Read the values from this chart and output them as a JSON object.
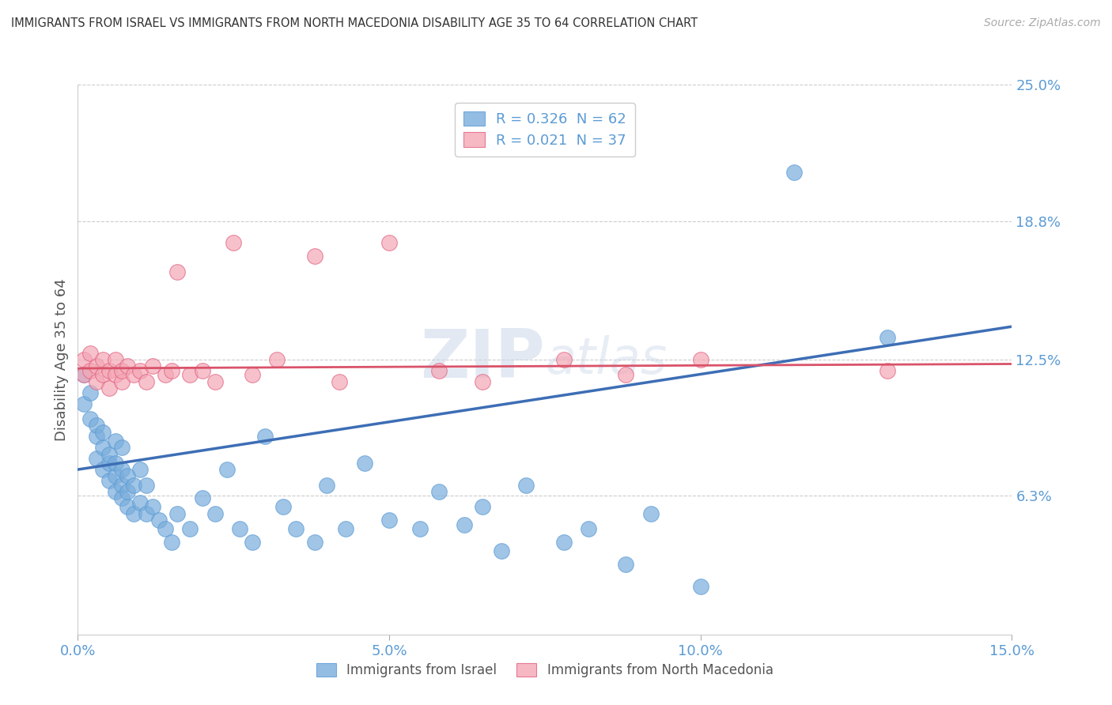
{
  "title": "IMMIGRANTS FROM ISRAEL VS IMMIGRANTS FROM NORTH MACEDONIA DISABILITY AGE 35 TO 64 CORRELATION CHART",
  "source": "Source: ZipAtlas.com",
  "ylabel": "Disability Age 35 to 64",
  "xlim": [
    0.0,
    0.15
  ],
  "ylim": [
    0.0,
    0.25
  ],
  "xticks": [
    0.0,
    0.05,
    0.1,
    0.15
  ],
  "xtick_labels": [
    "0.0%",
    "5.0%",
    "10.0%",
    "15.0%"
  ],
  "yticks": [
    0.0,
    0.063,
    0.125,
    0.188,
    0.25
  ],
  "ytick_labels": [
    "",
    "6.3%",
    "12.5%",
    "18.8%",
    "25.0%"
  ],
  "series1_color": "#7aaddc",
  "series1_edge": "#5b9bd5",
  "series2_color": "#f4a7b5",
  "series2_edge": "#e06080",
  "series1_label": "Immigrants from Israel",
  "series2_label": "Immigrants from North Macedonia",
  "series1_R": "0.326",
  "series1_N": "62",
  "series2_R": "0.021",
  "series2_N": "37",
  "line1_color": "#3d6eb5",
  "line2_color": "#d9536a",
  "background_color": "#ffffff",
  "grid_color": "#cccccc",
  "title_color": "#333333",
  "axis_label_color": "#5b9bd5",
  "series1_x": [
    0.001,
    0.001,
    0.002,
    0.002,
    0.003,
    0.003,
    0.003,
    0.004,
    0.004,
    0.004,
    0.005,
    0.005,
    0.005,
    0.006,
    0.006,
    0.006,
    0.006,
    0.007,
    0.007,
    0.007,
    0.007,
    0.008,
    0.008,
    0.008,
    0.009,
    0.009,
    0.01,
    0.01,
    0.011,
    0.011,
    0.012,
    0.013,
    0.014,
    0.015,
    0.016,
    0.018,
    0.02,
    0.022,
    0.024,
    0.026,
    0.028,
    0.03,
    0.033,
    0.035,
    0.038,
    0.04,
    0.043,
    0.046,
    0.05,
    0.055,
    0.058,
    0.062,
    0.065,
    0.068,
    0.072,
    0.078,
    0.082,
    0.088,
    0.092,
    0.1,
    0.115,
    0.13
  ],
  "series1_y": [
    0.118,
    0.105,
    0.098,
    0.11,
    0.09,
    0.08,
    0.095,
    0.085,
    0.075,
    0.092,
    0.078,
    0.07,
    0.082,
    0.072,
    0.065,
    0.078,
    0.088,
    0.068,
    0.062,
    0.075,
    0.085,
    0.065,
    0.072,
    0.058,
    0.055,
    0.068,
    0.06,
    0.075,
    0.055,
    0.068,
    0.058,
    0.052,
    0.048,
    0.042,
    0.055,
    0.048,
    0.062,
    0.055,
    0.075,
    0.048,
    0.042,
    0.09,
    0.058,
    0.048,
    0.042,
    0.068,
    0.048,
    0.078,
    0.052,
    0.048,
    0.065,
    0.05,
    0.058,
    0.038,
    0.068,
    0.042,
    0.048,
    0.032,
    0.055,
    0.022,
    0.21,
    0.135
  ],
  "series2_x": [
    0.001,
    0.001,
    0.002,
    0.002,
    0.003,
    0.003,
    0.004,
    0.004,
    0.005,
    0.005,
    0.006,
    0.006,
    0.007,
    0.007,
    0.008,
    0.009,
    0.01,
    0.011,
    0.012,
    0.014,
    0.015,
    0.016,
    0.018,
    0.02,
    0.022,
    0.025,
    0.028,
    0.032,
    0.038,
    0.042,
    0.05,
    0.058,
    0.065,
    0.078,
    0.088,
    0.1,
    0.13
  ],
  "series2_y": [
    0.125,
    0.118,
    0.12,
    0.128,
    0.115,
    0.122,
    0.118,
    0.125,
    0.112,
    0.12,
    0.118,
    0.125,
    0.115,
    0.12,
    0.122,
    0.118,
    0.12,
    0.115,
    0.122,
    0.118,
    0.12,
    0.165,
    0.118,
    0.12,
    0.115,
    0.178,
    0.118,
    0.125,
    0.172,
    0.115,
    0.178,
    0.12,
    0.115,
    0.125,
    0.118,
    0.125,
    0.12
  ]
}
